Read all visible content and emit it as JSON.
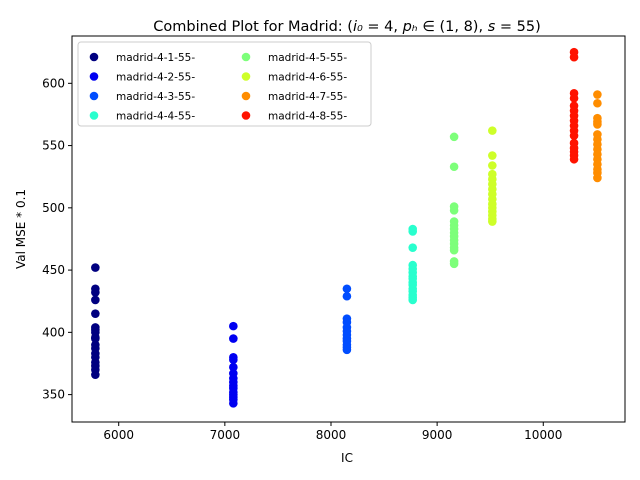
{
  "chart_data": {
    "type": "scatter",
    "title": "Combined Plot for Madrid: (i₀ = 4, pₕ ∈ (1, 8), s = 55)",
    "xlabel": "IC",
    "ylabel": "Val MSE * 0.1",
    "xlim": [
      5560,
      10770
    ],
    "ylim": [
      328,
      638
    ],
    "xticks": [
      6000,
      7000,
      8000,
      9000,
      10000
    ],
    "yticks": [
      350,
      400,
      450,
      500,
      550,
      600
    ],
    "grid": false,
    "legend_position": "top-left",
    "series": [
      {
        "name": "madrid-4-1-55-",
        "color": "#000080",
        "x": 5780,
        "values": [
          452,
          435,
          432,
          426,
          415,
          404,
          402,
          400,
          396,
          395,
          390,
          387,
          383,
          380,
          376,
          373,
          370,
          366
        ]
      },
      {
        "name": "madrid-4-2-55-",
        "color": "#0000f1",
        "x": 7080,
        "values": [
          405,
          395,
          380,
          378,
          372,
          367,
          363,
          360,
          357,
          355,
          352,
          350,
          348,
          346,
          343
        ]
      },
      {
        "name": "madrid-4-3-55-",
        "color": "#004dff",
        "x": 8150,
        "values": [
          435,
          429,
          411,
          408,
          404,
          401,
          398,
          395,
          393,
          390,
          388,
          386
        ]
      },
      {
        "name": "madrid-4-4-55-",
        "color": "#29ffce",
        "x": 8770,
        "values": [
          483,
          481,
          468,
          454,
          451,
          448,
          445,
          443,
          440,
          438,
          435,
          433,
          430,
          428,
          426
        ]
      },
      {
        "name": "madrid-4-5-55-",
        "color": "#7dff7a",
        "x": 9160,
        "values": [
          557,
          533,
          501,
          498,
          489,
          486,
          483,
          480,
          477,
          474,
          471,
          468,
          466,
          457,
          455
        ]
      },
      {
        "name": "madrid-4-6-55-",
        "color": "#ceff29",
        "x": 9520,
        "values": [
          562,
          542,
          534,
          527,
          523,
          519,
          515,
          511,
          507,
          503,
          500,
          497,
          494,
          491,
          489
        ]
      },
      {
        "name": "madrid-4-7-55-",
        "color": "#ff8d00",
        "x": 10510,
        "values": [
          591,
          584,
          572,
          569,
          567,
          559,
          555,
          551,
          547,
          543,
          539,
          535,
          531,
          528,
          524
        ]
      },
      {
        "name": "madrid-4-8-55-",
        "color": "#ff1300",
        "x": 10290,
        "values": [
          625,
          621,
          592,
          588,
          582,
          578,
          574,
          570,
          566,
          562,
          558,
          552,
          548,
          545,
          542,
          539
        ]
      }
    ]
  }
}
